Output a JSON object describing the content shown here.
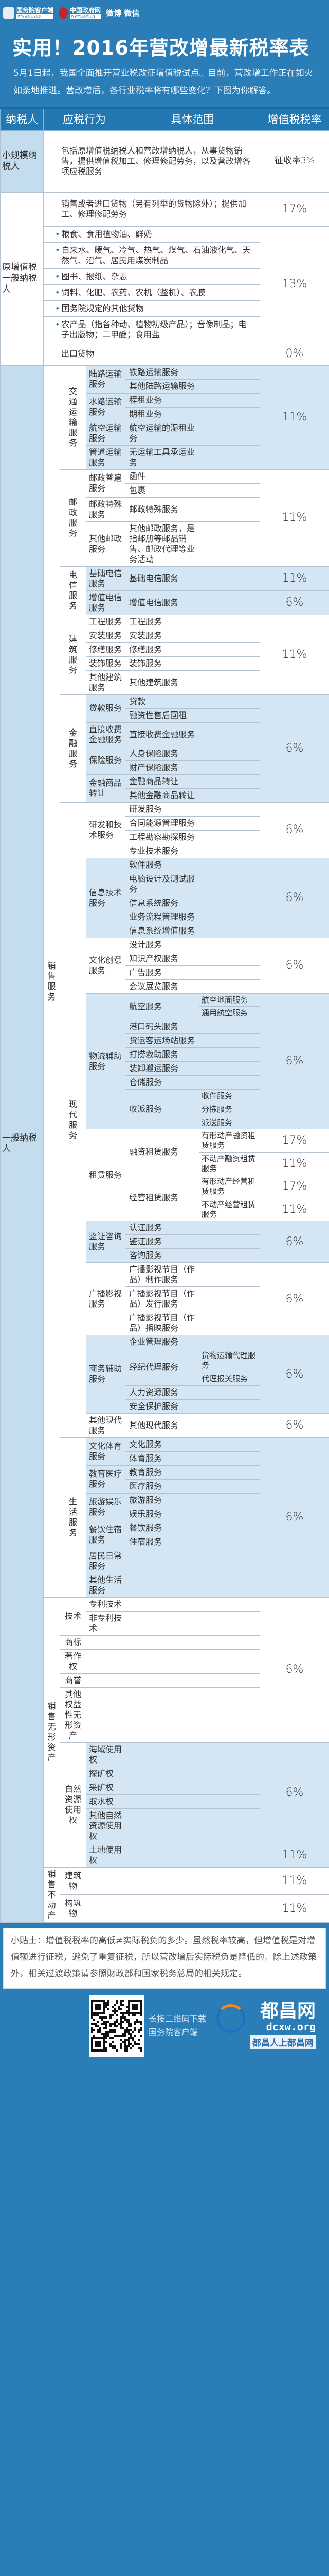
{
  "header": {
    "logo1_name": "国务院客户端",
    "logo1_url": "WWW.GOV.CN",
    "logo2_name": "中国政府网",
    "logo2_url": "WWW.GOV.CN",
    "social": "微博 微信",
    "title": "实用！2016年营改增最新税率表",
    "intro": "5月1日起，我国全面推开营业税改征增值税试点。目前，营改增工作正在如火如荼地推进。营改增后，各行业税率将有哪些变化？下图为你解答。"
  },
  "table": {
    "columns": {
      "taxpayer": "纳税人",
      "behavior": "应税行为",
      "scope": "具体范围",
      "rate": "增值税税率"
    },
    "small": {
      "taxpayer": "小规模纳税人",
      "scope": "包括原增值税纳税人和营改增纳税人，从事货物销售，提供增值税加工、修理修配劳务，以及营改增各项应税服务",
      "rate": "征收率3%"
    },
    "original": {
      "taxpayer": "原增值税一般纳税人",
      "standard": {
        "scope": "销售或者进口货物（另有列举的货物除外）；提供加工、修理修配劳务",
        "rate": "17%"
      },
      "reduced": {
        "items": [
          "粮食、食用植物油、鲜奶",
          "自来水、暖气、冷气、热气、煤气、石油液化气、天然气、沼气、居民用煤炭制品",
          "图书、报纸、杂志",
          "饲料、化肥、农药、农机（整机）、农膜",
          "国务院规定的其他货物",
          "农产品（指各种动、植物初级产品）；音像制品；电子出版物；二甲醚；食用盐"
        ],
        "rate": "13%"
      },
      "export": {
        "scope": "出口货物",
        "rate": "0%"
      }
    },
    "general": {
      "label": "一般纳税人",
      "children": [
        {
          "label": "销售服务",
          "children": [
            {
              "label": "交通运输服务",
              "rate": "11%",
              "shaded": true,
              "children": [
                {
                  "label": "陆路运输服务",
                  "children": [
                    {
                      "label": "铁路运输服务"
                    },
                    {
                      "label": "其他陆路运输服务"
                    }
                  ]
                },
                {
                  "label": "水路运输服务",
                  "children": [
                    {
                      "label": "程租业务"
                    },
                    {
                      "label": "期租业务"
                    }
                  ]
                },
                {
                  "label": "航空运输服务",
                  "children": [
                    {
                      "label": "航空运输的湿租业务"
                    }
                  ]
                },
                {
                  "label": "管道运输服务",
                  "children": [
                    {
                      "label": "无运输工具承运业务"
                    }
                  ]
                }
              ]
            },
            {
              "label": "邮政服务",
              "rate": "11%",
              "children": [
                {
                  "label": "邮政普遍服务",
                  "children": [
                    {
                      "label": "函件"
                    },
                    {
                      "label": "包裹"
                    }
                  ]
                },
                {
                  "label": "邮政特殊服务",
                  "children": [
                    {
                      "label": "邮政特殊服务"
                    }
                  ]
                },
                {
                  "label": "其他邮政服务",
                  "children": [
                    {
                      "label": "其他邮政服务，是指邮册等邮品销售、邮政代理等业务活动"
                    }
                  ]
                }
              ]
            },
            {
              "label": "电信服务",
              "shaded": true,
              "children": [
                {
                  "label": "基础电信服务",
                  "rate": "11%",
                  "children": [
                    {
                      "label": "基础电信服务"
                    }
                  ]
                },
                {
                  "label": "增值电信服务",
                  "rate": "6%",
                  "children": [
                    {
                      "label": "增值电信服务"
                    }
                  ]
                }
              ]
            },
            {
              "label": "建筑服务",
              "rate": "11%",
              "children": [
                {
                  "label": "工程服务",
                  "children": [
                    {
                      "label": "工程服务"
                    }
                  ]
                },
                {
                  "label": "安装服务",
                  "children": [
                    {
                      "label": "安装服务"
                    }
                  ]
                },
                {
                  "label": "修缮服务",
                  "children": [
                    {
                      "label": "修缮服务"
                    }
                  ]
                },
                {
                  "label": "装饰服务",
                  "children": [
                    {
                      "label": "装饰服务"
                    }
                  ]
                },
                {
                  "label": "其他建筑服务",
                  "children": [
                    {
                      "label": "其他建筑服务"
                    }
                  ]
                }
              ]
            },
            {
              "label": "金融服务",
              "rate": "6%",
              "shaded": true,
              "children": [
                {
                  "label": "贷款服务",
                  "children": [
                    {
                      "label": "贷款"
                    },
                    {
                      "label": "融资性售后回租"
                    }
                  ]
                },
                {
                  "label": "直接收费金融服务",
                  "children": [
                    {
                      "label": "直接收费金融服务"
                    }
                  ]
                },
                {
                  "label": "保险服务",
                  "children": [
                    {
                      "label": "人身保险服务"
                    },
                    {
                      "label": "财产保险服务"
                    }
                  ]
                },
                {
                  "label": "金融商品转让",
                  "children": [
                    {
                      "label": "金融商品转让"
                    },
                    {
                      "label": "其他金融商品转让"
                    }
                  ]
                }
              ]
            },
            {
              "label": "现代服务",
              "children": [
                {
                  "label": "研发和技术服务",
                  "rate": "6%",
                  "children": [
                    {
                      "label": "研发服务"
                    },
                    {
                      "label": "合同能源管理服务"
                    },
                    {
                      "label": "工程勘察勘探服务"
                    },
                    {
                      "label": "专业技术服务"
                    }
                  ]
                },
                {
                  "label": "信息技术服务",
                  "rate": "6%",
                  "shaded": true,
                  "children": [
                    {
                      "label": "软件服务"
                    },
                    {
                      "label": "电脑设计及测试服务"
                    },
                    {
                      "label": "信息系统服务"
                    },
                    {
                      "label": "业务流程管理服务"
                    },
                    {
                      "label": "信息系统增值服务"
                    }
                  ]
                },
                {
                  "label": "文化创意服务",
                  "rate": "6%",
                  "children": [
                    {
                      "label": "设计服务"
                    },
                    {
                      "label": "知识产权服务"
                    },
                    {
                      "label": "广告服务"
                    },
                    {
                      "label": "会议展览服务"
                    }
                  ]
                },
                {
                  "label": "物流辅助服务",
                  "rate": "6%",
                  "shaded": true,
                  "children": [
                    {
                      "label": "航空服务",
                      "children": [
                        {
                          "label": "航空地面服务"
                        },
                        {
                          "label": "通用航空服务"
                        }
                      ]
                    },
                    {
                      "label": "港口码头服务"
                    },
                    {
                      "label": "货运客运场站服务"
                    },
                    {
                      "label": "打捞救助服务"
                    },
                    {
                      "label": "装卸搬运服务"
                    },
                    {
                      "label": "仓储服务"
                    },
                    {
                      "label": "收派服务",
                      "children": [
                        {
                          "label": "收件服务"
                        },
                        {
                          "label": "分拣服务"
                        },
                        {
                          "label": "派送服务"
                        }
                      ]
                    }
                  ]
                },
                {
                  "label": "租赁服务",
                  "children": [
                    {
                      "label": "融资租赁服务",
                      "children": [
                        {
                          "label": "有形动产融资租赁服务",
                          "rate": "17%"
                        },
                        {
                          "label": "不动产融资租赁服务",
                          "rate": "11%"
                        }
                      ]
                    },
                    {
                      "label": "经营租赁服务",
                      "children": [
                        {
                          "label": "有形动产经营租赁服务",
                          "rate": "17%"
                        },
                        {
                          "label": "不动产经营租赁服务",
                          "rate": "11%"
                        }
                      ]
                    }
                  ]
                },
                {
                  "label": "鉴证咨询服务",
                  "rate": "6%",
                  "shaded": true,
                  "children": [
                    {
                      "label": "认证服务"
                    },
                    {
                      "label": "鉴证服务"
                    },
                    {
                      "label": "咨询服务"
                    }
                  ]
                },
                {
                  "label": "广播影视服务",
                  "rate": "6%",
                  "children": [
                    {
                      "label": "广播影视节目（作品）制作服务"
                    },
                    {
                      "label": "广播影视节目（作品）发行服务"
                    },
                    {
                      "label": "广播影视节目（作品）播映服务"
                    }
                  ]
                },
                {
                  "label": "商务辅助服务",
                  "rate": "6%",
                  "shaded": true,
                  "children": [
                    {
                      "label": "企业管理服务"
                    },
                    {
                      "label": "经纪代理服务",
                      "children": [
                        {
                          "label": "货物运输代理服务"
                        },
                        {
                          "label": "代理报关服务"
                        }
                      ]
                    },
                    {
                      "label": "人力资源服务"
                    },
                    {
                      "label": "安全保护服务"
                    }
                  ]
                },
                {
                  "label": "其他现代服务",
                  "rate": "6%",
                  "children": [
                    {
                      "label": "其他现代服务"
                    }
                  ]
                }
              ]
            },
            {
              "label": "生活服务",
              "rate": "6%",
              "shaded": true,
              "children": [
                {
                  "label": "文化体育服务",
                  "children": [
                    {
                      "label": "文化服务"
                    },
                    {
                      "label": "体育服务"
                    }
                  ]
                },
                {
                  "label": "教育医疗服务",
                  "children": [
                    {
                      "label": "教育服务"
                    },
                    {
                      "label": "医疗服务"
                    }
                  ]
                },
                {
                  "label": "旅游娱乐服务",
                  "children": [
                    {
                      "label": "旅游服务"
                    },
                    {
                      "label": "娱乐服务"
                    }
                  ]
                },
                {
                  "label": "餐饮住宿服务",
                  "children": [
                    {
                      "label": "餐饮服务"
                    },
                    {
                      "label": "住宿服务"
                    }
                  ]
                },
                {
                  "label": "居民日常服务"
                },
                {
                  "label": "其他生活服务"
                }
              ]
            }
          ]
        },
        {
          "label": "销售无形资产",
          "children": [
            {
              "rate": "6%",
              "children": [
                {
                  "label": "技术",
                  "children": [
                    {
                      "label": "专利技术"
                    },
                    {
                      "label": "非专利技术"
                    }
                  ]
                },
                {
                  "label": "商标"
                },
                {
                  "label": "著作权"
                },
                {
                  "label": "商誉"
                },
                {
                  "label": "其他权益性无形资产"
                }
              ]
            },
            {
              "label": "自然资源使用权",
              "shaded": true,
              "children": [
                {
                  "rate": "6%",
                  "children": [
                    {
                      "label": "海域使用权"
                    },
                    {
                      "label": "探矿权"
                    },
                    {
                      "label": "采矿权"
                    },
                    {
                      "label": "取水权"
                    },
                    {
                      "label": "其他自然资源使用权"
                    }
                  ]
                },
                {
                  "label": "土地使用权",
                  "rate": "11%"
                }
              ]
            }
          ]
        },
        {
          "label": "销售不动产",
          "children": [
            {
              "label": "建筑物",
              "rate": "11%"
            },
            {
              "label": "构筑物",
              "rate": "11%"
            }
          ]
        }
      ]
    }
  },
  "footer": {
    "tip": "小贴士：增值税税率的高低≠实际税负的多少。虽然税率较高，但增值税是对增值额进行征税，避免了重复征税，所以营改增后实际税负是降低的。除上述政策外，相关过渡政策请参照财政部和国家税务总局的相关规定。",
    "qr_caption_1": "长按二维码下载",
    "qr_caption_2": "国务院客户端",
    "watermark_name": "都昌网",
    "watermark_domain": "dcxw.org",
    "watermark_slogan": "都昌人上都昌网"
  }
}
